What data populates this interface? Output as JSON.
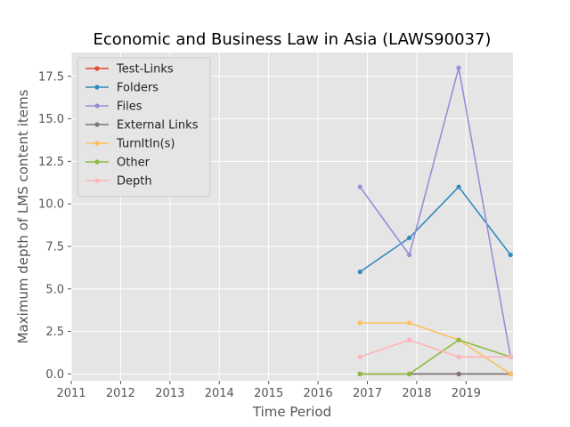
{
  "chart_data": {
    "type": "line",
    "title": "Economic and Business Law in Asia (LAWS90037)",
    "xlabel": "Time Period",
    "ylabel": "Maximum depth of LMS content items",
    "xlim": [
      2011.0,
      2019.95
    ],
    "ylim": [
      -0.4,
      18.9
    ],
    "x_ticks": [
      "2011",
      "2012",
      "2013",
      "2014",
      "2015",
      "2016",
      "2017",
      "2018",
      "2019"
    ],
    "y_ticks": [
      "0.0",
      "2.5",
      "5.0",
      "7.5",
      "10.0",
      "12.5",
      "15.0",
      "17.5"
    ],
    "y_tick_values": [
      0,
      2.5,
      5,
      7.5,
      10,
      12.5,
      15,
      17.5
    ],
    "x": [
      2016.85,
      2017.85,
      2018.85,
      2019.9
    ],
    "grid": true,
    "legend_position": "top-left",
    "series": [
      {
        "name": "Test-Links",
        "color": "#E24A33",
        "values": [
          0,
          0,
          0,
          0
        ]
      },
      {
        "name": "Folders",
        "color": "#348ABD",
        "values": [
          6,
          8,
          11,
          7
        ]
      },
      {
        "name": "Files",
        "color": "#988ED5",
        "values": [
          11,
          7,
          18,
          1
        ]
      },
      {
        "name": "External Links",
        "color": "#777777",
        "values": [
          0,
          0,
          0,
          0
        ]
      },
      {
        "name": "TurnItIn(s)",
        "color": "#FBC15E",
        "values": [
          3,
          3,
          2,
          0
        ]
      },
      {
        "name": "Other",
        "color": "#8EBA42",
        "values": [
          0,
          0,
          2,
          1
        ]
      },
      {
        "name": "Depth",
        "color": "#FFB5B8",
        "values": [
          1,
          2,
          1,
          1
        ]
      }
    ]
  }
}
